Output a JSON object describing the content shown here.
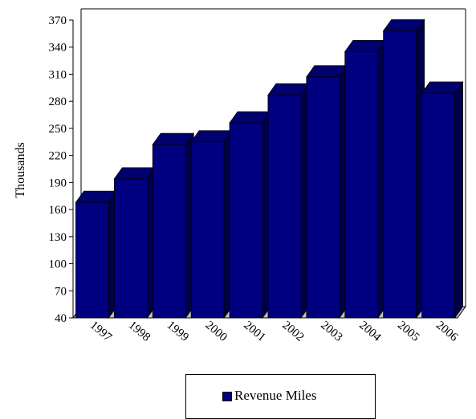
{
  "chart_data": {
    "type": "bar",
    "categories": [
      "1997",
      "1998",
      "1999",
      "2000",
      "2001",
      "2002",
      "2003",
      "2004",
      "2005",
      "2006"
    ],
    "series": [
      {
        "name": "Revenue Miles",
        "values": [
          168,
          194,
          232,
          235,
          256,
          287,
          307,
          335,
          358,
          289
        ]
      }
    ],
    "ylabel": "Thousands",
    "ylim": [
      40,
      370
    ],
    "yticks": [
      40,
      70,
      100,
      130,
      160,
      190,
      220,
      250,
      280,
      310,
      340,
      370
    ],
    "legend_position": "bottom",
    "grid": false,
    "colors": {
      "bar_front": "#000080",
      "bar_top": "#00006e",
      "bar_side": "#00004a",
      "outline": "#000000"
    }
  },
  "legend": {
    "label": "Revenue Miles"
  }
}
